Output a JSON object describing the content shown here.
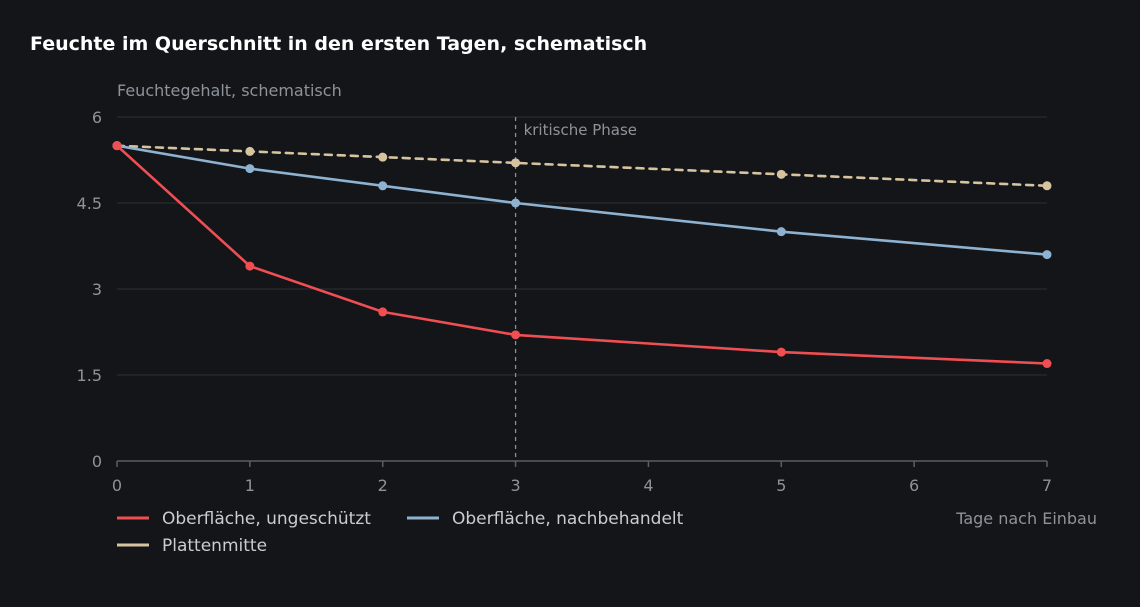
{
  "chart_data": {
    "type": "line",
    "title": "Feuchte im Querschnitt in den ersten Tagen, schematisch",
    "ylabel": "Feuchtegehalt, schematisch",
    "xlabel": "Tage nach Einbau",
    "ylim": [
      0,
      6
    ],
    "xlim": [
      0,
      7
    ],
    "yticks": [
      0,
      1.5,
      3,
      4.5,
      6
    ],
    "ytick_labels": [
      "0",
      "1.5",
      "3",
      "4.5",
      "6"
    ],
    "xticks": [
      0,
      1,
      2,
      3,
      4,
      5,
      6,
      7
    ],
    "xtick_labels": [
      "0",
      "1",
      "2",
      "3",
      "4",
      "5",
      "6",
      "7"
    ],
    "grid": "horizontal",
    "legend_position": "bottom-left",
    "annotation": {
      "x": 3,
      "label": "kritische Phase"
    },
    "series": [
      {
        "name": "Oberfläche, ungeschützt",
        "color": "#ef4e52",
        "dashed": false,
        "x": [
          0,
          1,
          2,
          3,
          5,
          7
        ],
        "values": [
          5.5,
          3.4,
          2.6,
          2.2,
          1.9,
          1.7
        ]
      },
      {
        "name": "Oberfläche, nachbehandelt",
        "color": "#8fb2d0",
        "dashed": false,
        "x": [
          0,
          1,
          2,
          3,
          5,
          7
        ],
        "values": [
          5.5,
          5.1,
          4.8,
          4.5,
          4.0,
          3.6
        ]
      },
      {
        "name": "Plattenmitte",
        "color": "#d6c39f",
        "dashed": true,
        "x": [
          0,
          1,
          2,
          3,
          5,
          7
        ],
        "values": [
          5.5,
          5.4,
          5.3,
          5.2,
          5.0,
          4.8
        ]
      }
    ]
  }
}
